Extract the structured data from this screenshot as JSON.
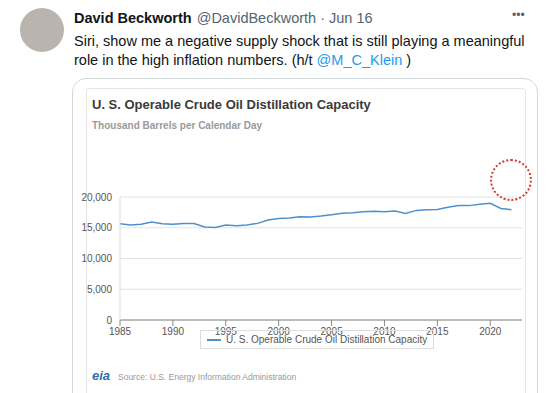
{
  "tweet": {
    "name": "David Beckworth",
    "handle_date": "@DavidBeckworth · Jun 16",
    "menu": "•••",
    "text": "Siri, show me a negative supply shock that is still playing a meaningful role in the high inflation numbers. (h/t",
    "mention": "@M_C_Klein",
    "text_end": ")"
  },
  "chart_data": {
    "type": "line",
    "title": "U. S. Operable Crude Oil Distillation Capacity",
    "subtitle": "Thousand Barrels per Calendar Day",
    "x": [
      1985,
      1986,
      1987,
      1988,
      1989,
      1990,
      1991,
      1992,
      1993,
      1994,
      1995,
      1996,
      1997,
      1998,
      1999,
      2000,
      2001,
      2002,
      2003,
      2004,
      2005,
      2006,
      2007,
      2008,
      2009,
      2010,
      2011,
      2012,
      2013,
      2014,
      2015,
      2016,
      2017,
      2018,
      2019,
      2020,
      2021,
      2022
    ],
    "series": [
      {
        "name": "U. S. Operable Crude Oil Distillation Capacity",
        "color": "#4e90cd",
        "values": [
          15659,
          15459,
          15566,
          15915,
          15655,
          15572,
          15676,
          15696,
          15121,
          15034,
          15434,
          15333,
          15452,
          15711,
          16261,
          16512,
          16595,
          16785,
          16757,
          16894,
          17125,
          17339,
          17443,
          17594,
          17672,
          17584,
          17736,
          17322,
          17824,
          17925,
          17967,
          18317,
          18617,
          18598,
          18805,
          18976,
          18127,
          17940
        ]
      }
    ],
    "xlim": [
      1985,
      2023
    ],
    "xticks": [
      1985,
      1990,
      1995,
      2000,
      2005,
      2010,
      2015,
      2020
    ],
    "ylim": [
      0,
      20000
    ],
    "yticks": [
      0,
      {
        "value": 5000,
        "label": "5,000"
      },
      {
        "value": 10000,
        "label": "10,000"
      },
      {
        "value": 15000,
        "label": "15,000"
      },
      {
        "value": 20000,
        "label": "20,000"
      }
    ],
    "grid": true,
    "legend": "bottom",
    "source": "Source: U.S. Energy Information Administration",
    "logo": "eia"
  }
}
